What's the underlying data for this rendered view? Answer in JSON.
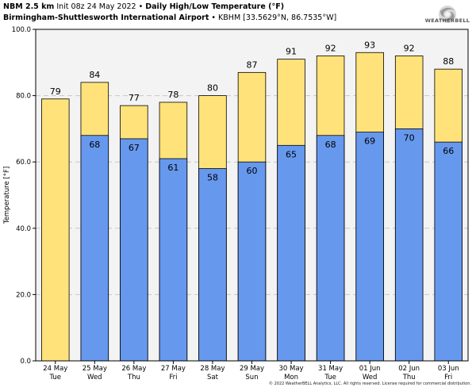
{
  "header": {
    "model": "NBM 2.5 km",
    "init": "Init 08z 24 May 2022",
    "sep": "•",
    "product": "Daily High/Low Temperature (°F)",
    "station_name": "Birmingham-Shuttlesworth International Airport",
    "station_info": "KBHM [33.5629°N, 86.7535°W]"
  },
  "logo": {
    "text": "WEATHERBELL",
    "icon": "storm-swirl-icon"
  },
  "footer": {
    "copyright": "© 2022 WeatherBELL Analytics, LLC. All rights reserved. License required for commercial distribution."
  },
  "chart_data": {
    "type": "bar",
    "ylabel": "Temperature [°F]",
    "ylim": [
      0,
      100
    ],
    "yticks": [
      0,
      20,
      40,
      60,
      80,
      100
    ],
    "ytick_labels": [
      "0.0",
      "20.0",
      "40.0",
      "60.0",
      "80.0",
      "100.0"
    ],
    "grid": true,
    "categories": [
      "24 May",
      "25 May",
      "26 May",
      "27 May",
      "28 May",
      "29 May",
      "30 May",
      "31 May",
      "01 Jun",
      "02 Jun",
      "03 Jun"
    ],
    "weekdays": [
      "Tue",
      "Wed",
      "Thu",
      "Fri",
      "Sat",
      "Sun",
      "Mon",
      "Tue",
      "Wed",
      "Thu",
      "Fri"
    ],
    "series": [
      {
        "key": "high",
        "values": [
          79,
          84,
          77,
          78,
          80,
          87,
          91,
          92,
          93,
          92,
          88
        ],
        "color": "#ffe37a",
        "labels": [
          "79",
          "84",
          "77",
          "78",
          "80",
          "87",
          "91",
          "92",
          "93",
          "92",
          "88"
        ]
      },
      {
        "key": "low",
        "values": [
          null,
          68,
          67,
          61,
          58,
          60,
          65,
          68,
          69,
          70,
          66
        ],
        "color": "#6699ee",
        "labels": [
          "",
          "68",
          "67",
          "61",
          "58",
          "60",
          "65",
          "68",
          "69",
          "70",
          "66"
        ]
      }
    ]
  }
}
